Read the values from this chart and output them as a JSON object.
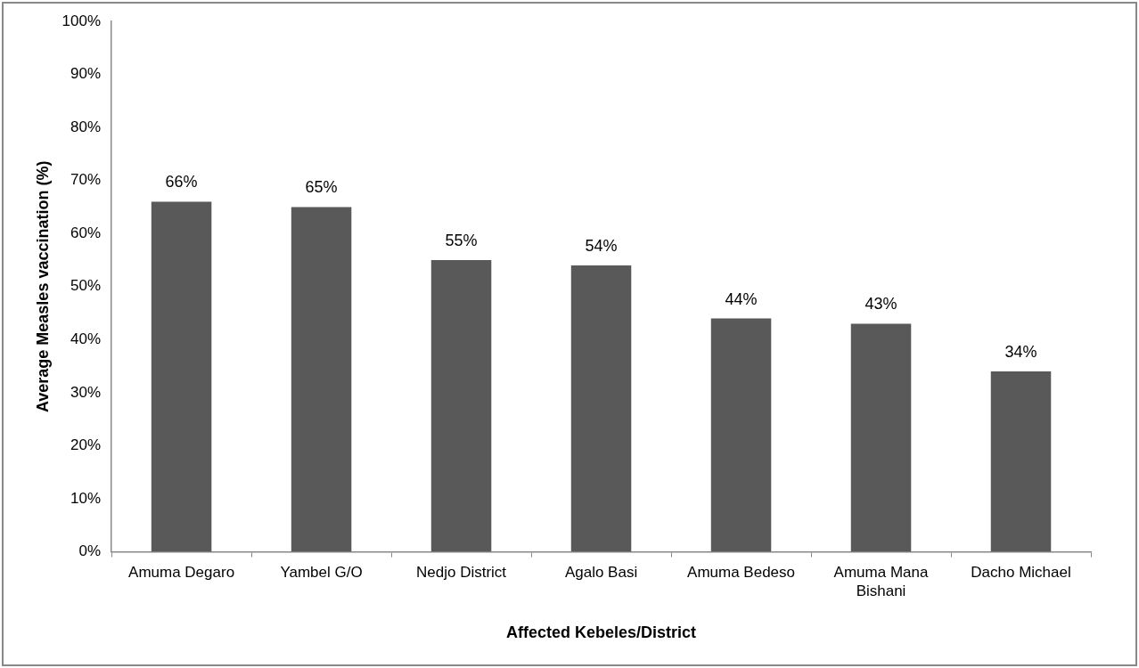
{
  "chart_data": {
    "type": "bar",
    "xlabel": "Affected Kebeles/District",
    "ylabel": "Average Measles vaccination (%)",
    "categories": [
      "Amuma Degaro",
      "Yambel G/O",
      "Nedjo District",
      "Agalo Basi",
      "Amuma Bedeso",
      "Amuma Mana Bishani",
      "Dacho Michael"
    ],
    "values": [
      66,
      65,
      55,
      54,
      44,
      43,
      34
    ],
    "value_labels": [
      "66%",
      "65%",
      "55%",
      "54%",
      "44%",
      "43%",
      "34%"
    ],
    "color": "#595959",
    "ylim": [
      0,
      100
    ],
    "yticks": [
      {
        "value": 0,
        "label": "0%"
      },
      {
        "value": 10,
        "label": "10%"
      },
      {
        "value": 20,
        "label": "20%"
      },
      {
        "value": 30,
        "label": "30%"
      },
      {
        "value": 40,
        "label": "40%"
      },
      {
        "value": 50,
        "label": "50%"
      },
      {
        "value": 60,
        "label": "60%"
      },
      {
        "value": 70,
        "label": "70%"
      },
      {
        "value": 80,
        "label": "80%"
      },
      {
        "value": 90,
        "label": "90%"
      },
      {
        "value": 100,
        "label": "100%"
      }
    ],
    "grid": false,
    "legend": false
  }
}
